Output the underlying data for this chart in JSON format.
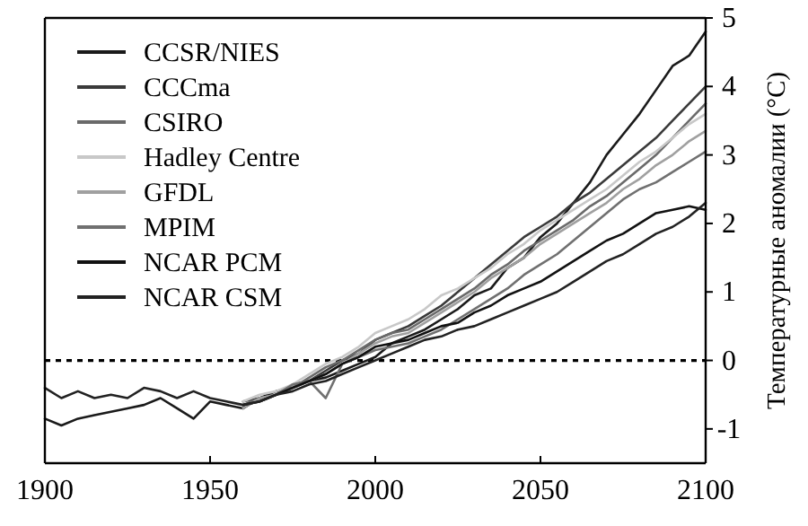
{
  "chart_data": {
    "type": "line",
    "ylabel": "Температурные аномалии (°С)",
    "x": [
      1900,
      1905,
      1910,
      1915,
      1920,
      1925,
      1930,
      1935,
      1940,
      1945,
      1950,
      1955,
      1960,
      1965,
      1970,
      1975,
      1980,
      1985,
      1990,
      1995,
      2000,
      2005,
      2010,
      2015,
      2020,
      2025,
      2030,
      2035,
      2040,
      2045,
      2050,
      2055,
      2060,
      2065,
      2070,
      2075,
      2080,
      2085,
      2090,
      2095,
      2100
    ],
    "series": [
      {
        "name": "CCSR/NIES",
        "color": "#1a1a1a",
        "values": [
          -0.85,
          -0.95,
          -0.85,
          -0.8,
          -0.75,
          -0.7,
          -0.65,
          -0.55,
          -0.7,
          -0.85,
          -0.6,
          -0.65,
          -0.7,
          -0.55,
          -0.45,
          -0.4,
          -0.3,
          -0.25,
          -0.15,
          -0.05,
          0.05,
          0.25,
          0.35,
          0.45,
          0.6,
          0.75,
          0.95,
          1.05,
          1.35,
          1.5,
          1.8,
          2.0,
          2.3,
          2.6,
          3.0,
          3.3,
          3.6,
          3.95,
          4.3,
          4.45,
          4.8
        ]
      },
      {
        "name": "CCCma",
        "color": "#3a3a3a",
        "values": [
          null,
          null,
          null,
          null,
          null,
          null,
          null,
          null,
          null,
          null,
          null,
          null,
          -0.6,
          -0.55,
          -0.5,
          -0.35,
          -0.3,
          -0.15,
          0,
          0.1,
          0.3,
          0.4,
          0.5,
          0.65,
          0.8,
          1.0,
          1.2,
          1.4,
          1.6,
          1.8,
          1.95,
          2.1,
          2.3,
          2.45,
          2.65,
          2.85,
          3.05,
          3.25,
          3.5,
          3.75,
          4.0
        ]
      },
      {
        "name": "CSIRO",
        "color": "#6a6a6a",
        "values": [
          null,
          null,
          null,
          null,
          null,
          null,
          null,
          null,
          null,
          null,
          null,
          null,
          -0.65,
          -0.55,
          -0.5,
          -0.4,
          -0.25,
          -0.1,
          0,
          0.15,
          0.3,
          0.4,
          0.45,
          0.6,
          0.75,
          0.9,
          1.05,
          1.25,
          1.4,
          1.6,
          1.75,
          1.9,
          2.05,
          2.25,
          2.4,
          2.6,
          2.8,
          3.0,
          3.25,
          3.5,
          3.75
        ]
      },
      {
        "name": "Hadley Centre",
        "color": "#c8c8c8",
        "values": [
          null,
          null,
          null,
          null,
          null,
          null,
          null,
          null,
          null,
          null,
          null,
          null,
          -0.6,
          -0.5,
          -0.45,
          -0.35,
          -0.2,
          -0.05,
          0.05,
          0.2,
          0.4,
          0.5,
          0.6,
          0.75,
          0.95,
          1.05,
          1.2,
          1.35,
          1.55,
          1.7,
          1.9,
          2.05,
          2.2,
          2.35,
          2.5,
          2.7,
          2.9,
          3.05,
          3.25,
          3.45,
          3.6
        ]
      },
      {
        "name": "GFDL",
        "color": "#a0a0a0",
        "values": [
          null,
          null,
          null,
          null,
          null,
          null,
          null,
          null,
          null,
          null,
          null,
          null,
          -0.7,
          -0.55,
          -0.5,
          -0.4,
          -0.3,
          -0.2,
          -0.05,
          0.1,
          0.25,
          0.35,
          0.4,
          0.55,
          0.7,
          0.85,
          1.0,
          1.2,
          1.35,
          1.5,
          1.7,
          1.85,
          2.0,
          2.15,
          2.3,
          2.5,
          2.65,
          2.85,
          3.0,
          3.2,
          3.35
        ]
      },
      {
        "name": "MPIM",
        "color": "#707070",
        "values": [
          null,
          null,
          null,
          null,
          null,
          null,
          null,
          null,
          null,
          null,
          null,
          null,
          -0.65,
          -0.6,
          -0.5,
          -0.35,
          -0.3,
          -0.55,
          -0.05,
          0.05,
          0.15,
          0.2,
          0.25,
          0.35,
          0.45,
          0.6,
          0.75,
          0.9,
          1.05,
          1.25,
          1.4,
          1.55,
          1.75,
          1.95,
          2.15,
          2.35,
          2.5,
          2.6,
          2.75,
          2.9,
          3.05
        ]
      },
      {
        "name": "NCAR PCM",
        "color": "#111111",
        "values": [
          null,
          null,
          null,
          null,
          null,
          null,
          null,
          null,
          null,
          null,
          null,
          null,
          -0.65,
          -0.6,
          -0.5,
          -0.4,
          -0.3,
          -0.2,
          -0.05,
          0.05,
          0.2,
          0.25,
          0.3,
          0.4,
          0.5,
          0.55,
          0.7,
          0.8,
          0.95,
          1.05,
          1.15,
          1.3,
          1.45,
          1.6,
          1.75,
          1.85,
          2.0,
          2.15,
          2.2,
          2.25,
          2.2
        ]
      },
      {
        "name": "NCAR CSM",
        "color": "#222222",
        "values": [
          -0.4,
          -0.55,
          -0.45,
          -0.55,
          -0.5,
          -0.55,
          -0.4,
          -0.45,
          -0.55,
          -0.45,
          -0.55,
          -0.6,
          -0.65,
          -0.6,
          -0.5,
          -0.45,
          -0.35,
          -0.3,
          -0.2,
          -0.1,
          0,
          0.1,
          0.2,
          0.3,
          0.35,
          0.45,
          0.5,
          0.6,
          0.7,
          0.8,
          0.9,
          1.0,
          1.15,
          1.3,
          1.45,
          1.55,
          1.7,
          1.85,
          1.95,
          2.1,
          2.3
        ]
      }
    ],
    "xlim": [
      1900,
      2100
    ],
    "xticks": [
      1900,
      1950,
      2000,
      2050,
      2100
    ],
    "ylim": [
      -1.5,
      5
    ],
    "yticks": [
      -1,
      0,
      1,
      2,
      3,
      4,
      5
    ],
    "ref_lines": [
      {
        "axis": "y",
        "value": 0,
        "line_style": "dotted",
        "color": "#000000"
      }
    ],
    "legend": "top left",
    "grid": false,
    "marker": "none",
    "line_style": "solid"
  }
}
